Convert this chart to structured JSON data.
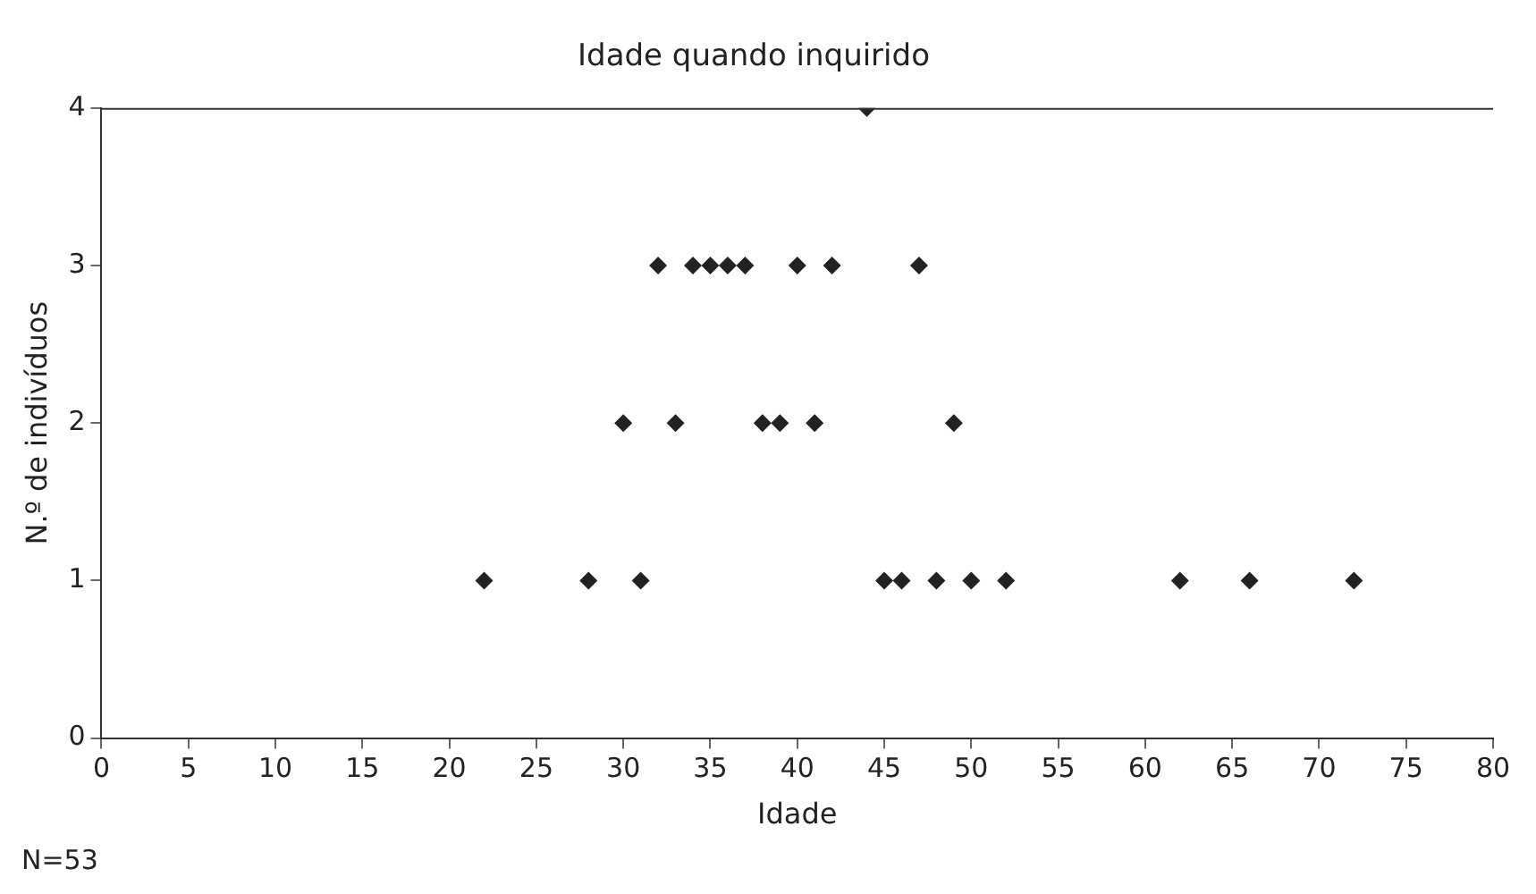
{
  "chart_data": {
    "type": "scatter",
    "title": "Idade quando inquirido",
    "xlabel": "Idade",
    "ylabel": "N.º de indivíduos",
    "x": [
      22,
      28,
      31,
      45,
      46,
      48,
      50,
      52,
      62,
      66,
      72,
      30,
      33,
      38,
      39,
      41,
      49,
      32,
      34,
      35,
      36,
      37,
      40,
      42,
      47,
      44
    ],
    "values": [
      1,
      1,
      1,
      1,
      1,
      1,
      1,
      1,
      1,
      1,
      1,
      2,
      2,
      2,
      2,
      2,
      2,
      3,
      3,
      3,
      3,
      3,
      3,
      3,
      3,
      4
    ],
    "color": "#222222",
    "marker": "diamond",
    "xlim": [
      0,
      80
    ],
    "xticks": [
      0,
      5,
      10,
      15,
      20,
      25,
      30,
      35,
      40,
      45,
      50,
      55,
      60,
      65,
      70,
      75,
      80
    ],
    "ylim": [
      0,
      4
    ],
    "yticks": [
      0,
      1,
      2,
      3,
      4
    ],
    "grid": false,
    "legend": false,
    "annotations": [
      "N=53"
    ]
  }
}
